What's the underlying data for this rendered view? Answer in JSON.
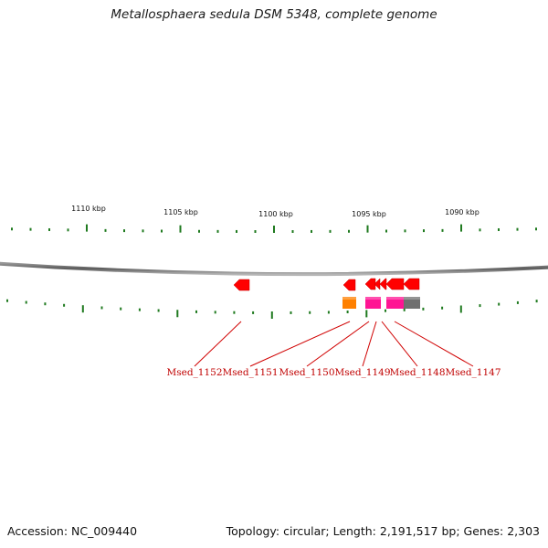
{
  "title": "Metallosphaera sedula DSM 5348, complete genome",
  "footer": {
    "accession": "Accession: NC_009440",
    "summary": "Topology: circular; Length: 2,191,517 bp; Genes: 2,303"
  },
  "scale_labels": [
    "1110 kbp",
    "1105 kbp",
    "1100 kbp",
    "1095 kbp",
    "1090 kbp"
  ],
  "gene_labels": [
    "Msed_1152",
    "Msed_1151",
    "Msed_1150",
    "Msed_1149",
    "Msed_1148",
    "Msed_1147"
  ],
  "colors": {
    "backbone": "#6f6f6f",
    "tick": "#1f7a1f",
    "gene_arrow": "#ff0000",
    "label_line": "#d00000",
    "cog_orange": "#ff8000",
    "cog_pink": "#ff1493",
    "cog_gray": "#707070"
  }
}
